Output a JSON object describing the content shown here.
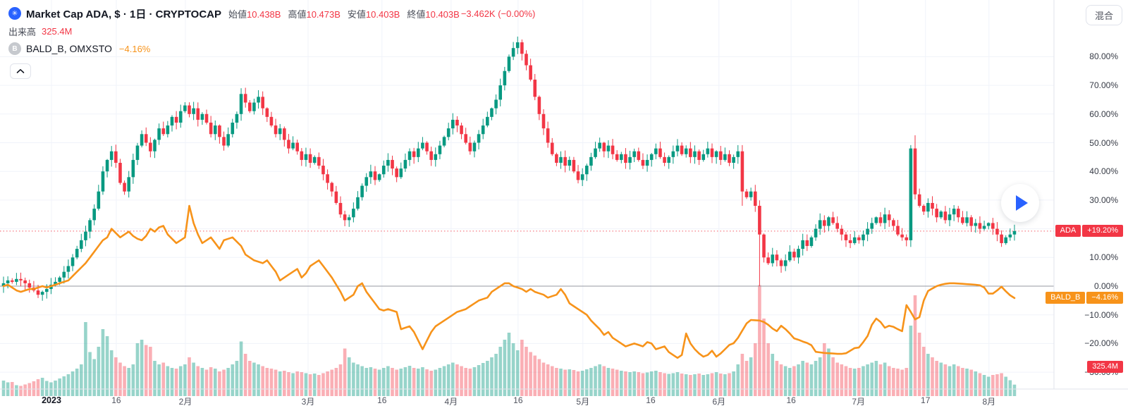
{
  "header": {
    "title": "Market Cap ADA, $ · 1日 · CRYPTOCAP",
    "symbol_icon": "crypto-total-marketcap-logo",
    "ohlc": [
      {
        "label": "始値",
        "value": "10.438B"
      },
      {
        "label": "高値",
        "value": "10.473B"
      },
      {
        "label": "安値",
        "value": "10.403B"
      },
      {
        "label": "終値",
        "value": "10.403B"
      }
    ],
    "change": "−3.462K (−0.00%)",
    "volume_label": "出来高",
    "volume_value": "325.4M",
    "compare_icon_letter": "B",
    "compare_name": "BALD_B, OMXSTO",
    "compare_change": "−4.16%"
  },
  "toolbar": {
    "mixed_label": "混合"
  },
  "badges": {
    "ada_symbol": "ADA",
    "ada_value": "+19.20%",
    "ada_pct": 19.2,
    "bald_symbol": "BALD_B",
    "bald_value": "−4.16%",
    "bald_pct": -4.16,
    "volume_value": "325.4M",
    "accent_red": "#f23645",
    "accent_orange": "#f7931a"
  },
  "axes": {
    "y_labels": [
      {
        "label": "80.00%",
        "pct": 80
      },
      {
        "label": "70.00%",
        "pct": 70
      },
      {
        "label": "60.00%",
        "pct": 60
      },
      {
        "label": "50.00%",
        "pct": 50
      },
      {
        "label": "40.00%",
        "pct": 40
      },
      {
        "label": "30.00%",
        "pct": 30
      },
      {
        "label": "10.00%",
        "pct": 10
      },
      {
        "label": "0.00%",
        "pct": 0
      },
      {
        "label": "−10.00%",
        "pct": -10
      },
      {
        "label": "−20.00%",
        "pct": -20
      },
      {
        "label": "−30.00%",
        "pct": -30
      }
    ],
    "x_labels": [
      {
        "label": "2023",
        "day": 11.1,
        "bold": true
      },
      {
        "label": "16",
        "day": 26.1
      },
      {
        "label": "2月",
        "day": 42.1
      },
      {
        "label": "3月",
        "day": 70.5
      },
      {
        "label": "16",
        "day": 87.6
      },
      {
        "label": "4月",
        "day": 103.6
      },
      {
        "label": "16",
        "day": 119.1
      },
      {
        "label": "5月",
        "day": 134.1
      },
      {
        "label": "16",
        "day": 149.8
      },
      {
        "label": "6月",
        "day": 165.6
      },
      {
        "label": "16",
        "day": 182.3
      },
      {
        "label": "7月",
        "day": 197.9
      },
      {
        "label": "17",
        "day": 213.4
      },
      {
        "label": "8月",
        "day": 228.1
      }
    ]
  },
  "chart_data": {
    "type": "candlestick",
    "title": "Market Cap ADA, $ · 1日 · CRYPTOCAP",
    "y_unit": "percent change",
    "ylim": [
      -33,
      88
    ],
    "x_range": "daily bars, late Dec 2022 – mid Aug 2023",
    "grid_pct": [
      80,
      70,
      60,
      50,
      40,
      30,
      20,
      10,
      0,
      -10,
      -20,
      -30
    ],
    "current_line_pct": 19.2,
    "zero_line_pct": 0,
    "series": [
      {
        "name": "ADA market cap % change (candles)",
        "type": "candlestick",
        "up_color": "#089981",
        "down_color": "#f23645",
        "closes": [
          1,
          2,
          1.5,
          2.5,
          2,
          1,
          -0.5,
          -1.5,
          -3,
          -2,
          -1,
          0.5,
          1.5,
          3,
          5,
          7,
          10,
          13,
          16,
          19,
          23,
          27,
          33,
          40,
          44,
          47,
          43,
          36,
          33,
          38,
          44,
          49,
          53,
          50,
          47,
          51,
          55,
          53,
          56,
          59,
          57,
          61,
          63,
          60,
          62,
          58,
          60,
          57,
          53,
          56,
          52,
          49,
          53,
          57,
          60,
          67,
          64,
          61,
          64,
          66,
          62,
          59,
          56,
          53,
          55,
          51,
          48,
          50,
          47,
          44,
          46,
          43,
          45,
          42,
          39,
          36,
          33,
          29,
          25,
          23,
          24,
          27,
          31,
          35,
          38,
          40,
          37,
          39,
          42,
          44,
          41,
          38,
          41,
          44,
          47,
          45,
          48,
          50,
          47,
          44,
          46,
          49,
          52,
          55,
          58,
          56,
          53,
          50,
          47,
          50,
          53,
          56,
          59,
          62,
          65,
          70,
          75,
          80,
          83,
          85,
          81,
          77,
          72,
          66,
          60,
          55,
          50,
          46,
          43,
          45,
          42,
          44,
          40,
          37,
          39,
          42,
          45,
          48,
          50,
          47,
          49,
          46,
          44,
          46,
          43,
          45,
          47,
          44,
          42,
          44,
          46,
          48,
          45,
          43,
          45,
          47,
          49,
          46,
          48,
          45,
          47,
          44,
          46,
          48,
          45,
          47,
          44,
          46,
          43,
          45,
          47,
          33,
          31,
          33,
          28,
          18,
          10,
          8,
          11,
          9,
          7,
          9,
          12,
          10,
          13,
          16,
          14,
          17,
          20,
          23,
          21,
          24,
          22,
          20,
          18,
          16,
          15,
          17,
          16,
          18,
          20,
          22,
          24,
          22,
          25,
          23,
          21,
          18,
          17,
          16,
          48,
          32,
          28,
          26,
          29,
          27,
          24,
          26,
          23,
          25,
          27,
          24,
          22,
          24,
          21,
          22,
          20,
          21,
          22,
          20,
          18,
          15,
          17,
          18,
          19.2
        ],
        "wick_overrides": {
          "55": {
            "h": 69
          },
          "119": {
            "h": 87
          },
          "171": {
            "l": 28
          },
          "175": {
            "l": 0
          },
          "211": {
            "h": 52.6
          },
          "231": {
            "l": 13.7
          }
        },
        "last_value_pct": 19.2
      },
      {
        "name": "BALD_B, OMXSTO % change (line)",
        "type": "line",
        "color": "#f7931a",
        "values": [
          0,
          0.5,
          -0.5,
          -1.5,
          -2,
          -1.5,
          -1,
          -1,
          -0.5,
          0,
          -0.5,
          0,
          0.5,
          1,
          1.5,
          2,
          3.5,
          5,
          6.5,
          8,
          10,
          12,
          14,
          16,
          17,
          20,
          18.5,
          17,
          18,
          19,
          17.5,
          16.5,
          16,
          17.5,
          20,
          19,
          20.5,
          21,
          18,
          16.5,
          15,
          16,
          17,
          28,
          22,
          18,
          15,
          16,
          17,
          15,
          13,
          16,
          16.5,
          17,
          15.5,
          14,
          11,
          10,
          9,
          8.5,
          8,
          9,
          7,
          5,
          2,
          3,
          4,
          5,
          6,
          3,
          4.5,
          7,
          8,
          9,
          7,
          5,
          3,
          0.5,
          -2,
          -5,
          -4,
          -3,
          0,
          1,
          -2,
          -4,
          -6,
          -8,
          -8.5,
          -8,
          -8.5,
          -9,
          -15,
          -14.5,
          -14,
          -16,
          -19,
          -22,
          -19,
          -16,
          -14,
          -13,
          -12,
          -11,
          -10,
          -9,
          -8.5,
          -8,
          -7,
          -6,
          -5,
          -4.5,
          -4,
          -2,
          -1,
          0,
          1,
          1,
          0,
          -0.5,
          -1,
          -2,
          -1,
          -2,
          -2.5,
          -3,
          -4,
          -3.5,
          -3,
          -1,
          -3,
          -6,
          -7,
          -8,
          -9,
          -10,
          -12,
          -13.5,
          -15,
          -17,
          -16,
          -18,
          -19,
          -20,
          -21,
          -20.5,
          -20,
          -20.5,
          -21,
          -19.5,
          -20,
          -22,
          -21.5,
          -21,
          -23,
          -24,
          -25,
          -24,
          -16.5,
          -20,
          -22,
          -23.5,
          -24.6,
          -24,
          -22.5,
          -24.6,
          -23.5,
          -22,
          -20.5,
          -19.9,
          -18,
          -15.5,
          -13,
          -11.8,
          -11.9,
          -12,
          -12.5,
          -13.5,
          -14.8,
          -15.7,
          -13.8,
          -15,
          -16.5,
          -18.2,
          -18.7,
          -19.3,
          -19.8,
          -20.6,
          -22.9,
          -23.1,
          -23.3,
          -23.4,
          -23.5,
          -23.6,
          -23.6,
          -23.4,
          -22.5,
          -21.6,
          -21.4,
          -19.5,
          -17.4,
          -13.5,
          -11.3,
          -12.5,
          -14.5,
          -13.8,
          -14.2,
          -15,
          -15.7,
          -6.6,
          -9,
          -11.6,
          -10.8,
          -5,
          -1.7,
          -0.8,
          0,
          0.5,
          0.8,
          1,
          1,
          0.9,
          0.8,
          0.7,
          0.6,
          0.5,
          0.3,
          -0.5,
          -2.6,
          -2.6,
          -1.5,
          -0.2,
          -1.8,
          -3.2,
          -4.16
        ],
        "last_value_pct": -4.16
      },
      {
        "name": "出来高 volume (millions)",
        "type": "bar",
        "up_color": "rgba(8,153,129,0.42)",
        "down_color": "rgba(242,54,69,0.40)",
        "values_M": [
          440,
          390,
          400,
          310,
          290,
          330,
          370,
          420,
          480,
          520,
          430,
          390,
          440,
          500,
          560,
          620,
          700,
          780,
          900,
          2100,
          1250,
          1050,
          1400,
          1900,
          1700,
          1300,
          1100,
          950,
          850,
          800,
          900,
          1500,
          1600,
          1450,
          1400,
          1000,
          900,
          950,
          850,
          800,
          780,
          850,
          900,
          1100,
          950,
          850,
          800,
          750,
          820,
          780,
          700,
          750,
          800,
          900,
          1000,
          1550,
          1200,
          1000,
          950,
          900,
          850,
          800,
          780,
          750,
          700,
          720,
          680,
          650,
          700,
          680,
          650,
          620,
          640,
          600,
          650,
          700,
          750,
          800,
          900,
          1350,
          1100,
          950,
          900,
          850,
          800,
          820,
          780,
          750,
          800,
          850,
          800,
          750,
          780,
          820,
          860,
          800,
          780,
          820,
          760,
          720,
          750,
          800,
          850,
          900,
          950,
          900,
          850,
          800,
          780,
          820,
          880,
          940,
          1000,
          1100,
          1200,
          1400,
          1600,
          1800,
          1500,
          1300,
          1600,
          1400,
          1250,
          1150,
          1050,
          950,
          900,
          850,
          800,
          780,
          750,
          760,
          740,
          700,
          720,
          760,
          800,
          850,
          900,
          850,
          800,
          780,
          750,
          720,
          700,
          680,
          700,
          680,
          650,
          670,
          700,
          720,
          680,
          650,
          630,
          650,
          680,
          640,
          620,
          600,
          620,
          640,
          600,
          620,
          650,
          680,
          640,
          620,
          650,
          700,
          900,
          1200,
          1000,
          1100,
          1500,
          3150,
          2200,
          1500,
          1200,
          1000,
          900,
          850,
          800,
          850,
          900,
          1000,
          950,
          900,
          1000,
          1100,
          1500,
          1350,
          1100,
          950,
          900,
          850,
          800,
          780,
          800,
          850,
          900,
          950,
          1000,
          900,
          950,
          850,
          800,
          780,
          750,
          800,
          2000,
          2860,
          1800,
          1400,
          1200,
          1100,
          1000,
          950,
          900,
          850,
          900,
          850,
          800,
          780,
          750,
          700,
          650,
          600,
          550,
          600,
          620,
          650,
          550,
          450,
          325.4
        ],
        "last_value": "325.4M"
      }
    ]
  }
}
